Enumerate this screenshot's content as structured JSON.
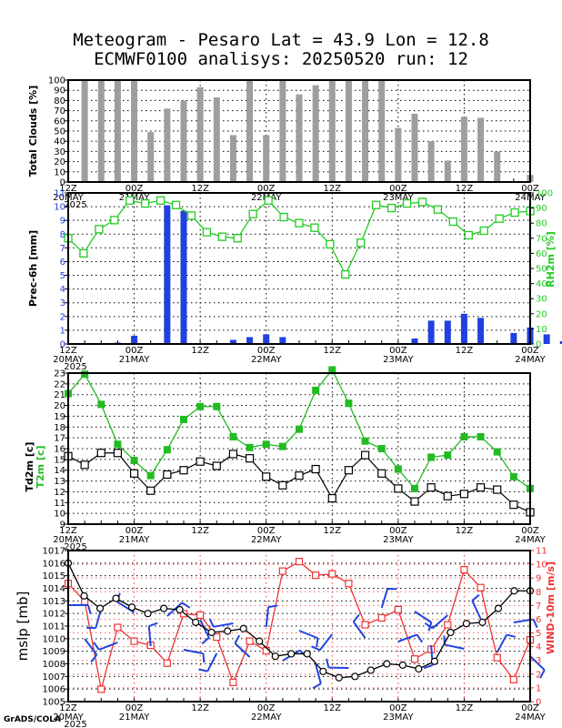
{
  "title_line1": "Meteogram - Pesaro Lat = 43.9 Lon = 12.8",
  "title_line2": "ECMWF0100 analisys: 20250520 run: 12",
  "credit": "GrADS/COLA",
  "time_axis": {
    "tick_labels": [
      "12Z",
      "00Z",
      "12Z",
      "00Z",
      "12Z",
      "00Z",
      "12Z",
      "00Z"
    ],
    "date_labels": [
      "20MAY",
      "21MAY",
      "",
      "22MAY",
      "",
      "23MAY",
      "",
      "24MAY"
    ],
    "year": "2025",
    "step_hours": 3
  },
  "colors": {
    "bars_clouds": "#9e9e9e",
    "bars_prec": "#2040e0",
    "rh": "#22cc22",
    "t2m": "#22bb22",
    "td2m": "#000000",
    "mslp": "#000000",
    "wind": "#ee3333",
    "barbs": "#2244dd"
  },
  "chart_data": [
    {
      "type": "bar",
      "ylabel": "Total Clouds [%]",
      "ylim": [
        0,
        100
      ],
      "yticks": [
        0,
        10,
        20,
        30,
        40,
        50,
        60,
        70,
        80,
        90,
        100
      ],
      "values": [
        100,
        100,
        100,
        99,
        49,
        72,
        80,
        93,
        83,
        46,
        100,
        46,
        100,
        86,
        95,
        100,
        100,
        100,
        100,
        53,
        67,
        40,
        21,
        64,
        63,
        30,
        0,
        7
      ]
    },
    {
      "type": "bar+line",
      "ylabel": "Prec-6h [mm]",
      "ylim": [
        0,
        11
      ],
      "yticks": [
        0,
        1,
        2,
        3,
        4,
        5,
        6,
        7,
        8,
        9,
        10,
        11
      ],
      "precip": [
        0,
        0.1,
        0.6,
        0,
        10.1,
        9.7,
        0,
        0,
        0.3,
        0.5,
        0.7,
        0.5,
        0,
        0,
        0,
        0,
        0,
        0,
        0,
        0.4,
        1.7,
        1.7,
        2.2,
        1.9,
        0,
        0.8,
        1.2,
        0.7,
        0.2,
        0
      ],
      "y2label": "RH2m [%]",
      "y2lim": [
        0,
        100
      ],
      "y2ticks": [
        0,
        10,
        20,
        30,
        40,
        50,
        60,
        70,
        80,
        90,
        100
      ],
      "rh": [
        70,
        60,
        76,
        82,
        95,
        93,
        95,
        92,
        85,
        74,
        71,
        70,
        86,
        95,
        84,
        80,
        77,
        66,
        46,
        67,
        92,
        90,
        93,
        94,
        89,
        81,
        72,
        75,
        83,
        87,
        88
      ]
    },
    {
      "type": "line",
      "ylabel_t2m": "T2m [c]",
      "ylabel_td2m": "Td2m [c]",
      "ylim": [
        9,
        23
      ],
      "yticks": [
        9,
        10,
        11,
        12,
        13,
        14,
        15,
        16,
        17,
        18,
        19,
        20,
        21,
        22,
        23
      ],
      "t2m": [
        21.1,
        22.9,
        20.1,
        16.4,
        14.9,
        13.5,
        15.9,
        18.7,
        19.9,
        19.9,
        17.1,
        16.1,
        16.4,
        16.2,
        17.8,
        21.4,
        23.3,
        20.2,
        16.7,
        16.0,
        14.1,
        12.3,
        15.2,
        15.4,
        17.1,
        17.1,
        15.7,
        13.4,
        12.3
      ],
      "td2m": [
        15.3,
        14.5,
        15.6,
        15.6,
        13.7,
        12.1,
        13.6,
        14.0,
        14.8,
        14.4,
        15.5,
        15.1,
        13.4,
        12.6,
        13.5,
        14.1,
        11.4,
        14.0,
        15.4,
        13.7,
        12.3,
        11.1,
        12.4,
        11.6,
        11.8,
        12.4,
        12.2,
        10.8,
        10.1
      ]
    },
    {
      "type": "line",
      "ylabel": "mslp [mb]",
      "ylim": [
        1005,
        1017
      ],
      "yticks": [
        1005,
        1006,
        1007,
        1008,
        1009,
        1010,
        1011,
        1012,
        1013,
        1014,
        1015,
        1016,
        1017
      ],
      "mslp": [
        1016.0,
        1013.4,
        1012.4,
        1013.2,
        1012.5,
        1012.0,
        1012.4,
        1012.3,
        1011.3,
        1010.5,
        1010.6,
        1010.8,
        1009.8,
        1008.6,
        1008.8,
        1008.8,
        1007.4,
        1006.9,
        1007.0,
        1007.5,
        1008.0,
        1007.9,
        1007.6,
        1008.2,
        1010.5,
        1011.2,
        1011.3,
        1012.4,
        1013.8,
        1013.8
      ],
      "y2label": "WIND-10m [m/s]",
      "y2lim": [
        0,
        11
      ],
      "y2ticks": [
        0,
        1,
        2,
        3,
        4,
        5,
        6,
        7,
        8,
        9,
        10,
        11
      ],
      "wind": [
        8.6,
        7.3,
        0.9,
        5.4,
        4.4,
        4.1,
        2.8,
        6.4,
        6.3,
        4.7,
        1.4,
        4.4,
        3.7,
        9.5,
        10.2,
        9.2,
        9.3,
        8.6,
        5.6,
        6.1,
        6.7,
        3.1,
        3.8,
        5.6,
        9.6,
        8.3,
        3.2,
        1.6,
        4.5
      ]
    }
  ]
}
